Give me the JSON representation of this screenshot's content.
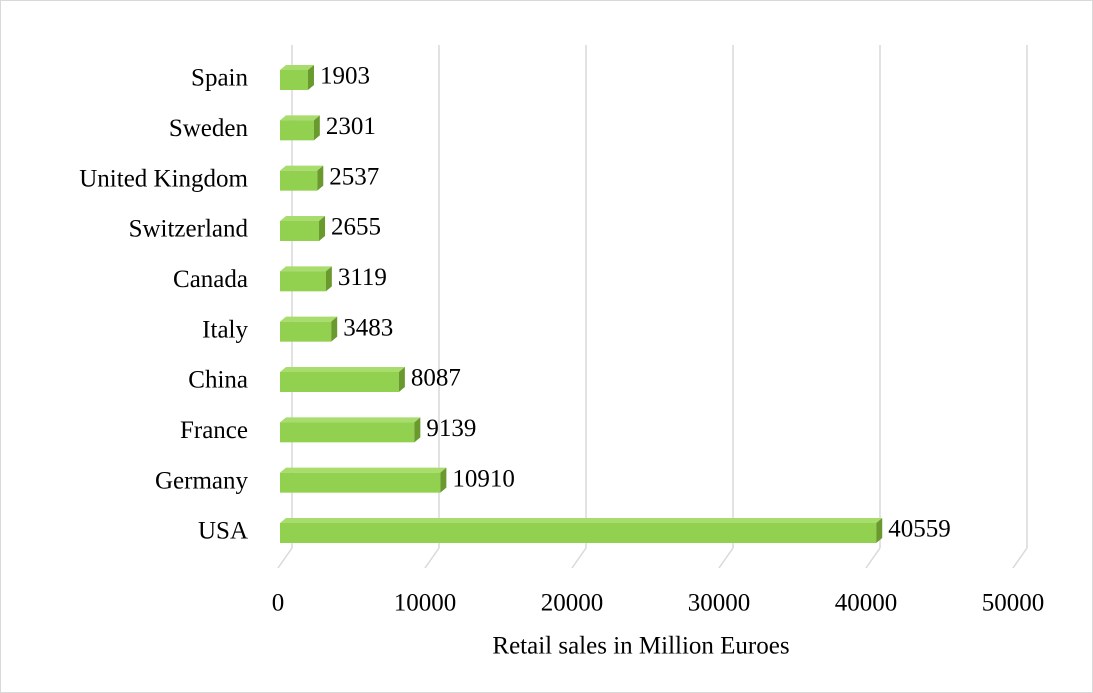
{
  "chart_data": {
    "type": "bar",
    "orientation": "horizontal",
    "three_d": true,
    "x_label": "Retail sales in Million Euroes",
    "categories": [
      "USA",
      "Germany",
      "France",
      "China",
      "Italy",
      "Canada",
      "Switzerland",
      "United Kingdom",
      "Sweden",
      "Spain"
    ],
    "values": [
      40559,
      10910,
      9139,
      8087,
      3483,
      3119,
      2655,
      2537,
      2301,
      1903
    ],
    "color": "#92d050",
    "xlim": [
      0,
      50000
    ],
    "xticks": [
      0,
      10000,
      20000,
      30000,
      40000,
      50000
    ],
    "grid": true
  }
}
